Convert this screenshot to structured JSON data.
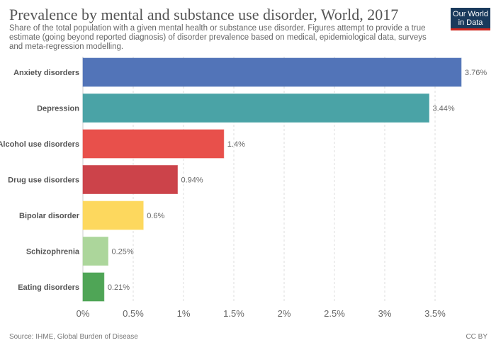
{
  "header": {
    "title": "Prevalence by mental and substance use disorder, World, 2017",
    "subtitle": "Share of the total population with a given mental health or substance use disorder. Figures attempt to provide a true estimate (going beyond reported diagnosis) of disorder prevalence based on medical, epidemiological data, surveys and meta-regression modelling.",
    "logo_line1": "Our World",
    "logo_line2": "in Data"
  },
  "footer": {
    "source": "Source: IHME, Global Burden of Disease",
    "license": "CC BY"
  },
  "chart_data": {
    "type": "bar",
    "orientation": "horizontal",
    "categories": [
      "Anxiety disorders",
      "Depression",
      "Alcohol use disorders",
      "Drug use disorders",
      "Bipolar disorder",
      "Schizophrenia",
      "Eating disorders"
    ],
    "values": [
      3.76,
      3.44,
      1.4,
      0.94,
      0.6,
      0.25,
      0.21
    ],
    "value_labels": [
      "3.76%",
      "3.44%",
      "1.4%",
      "0.94%",
      "0.6%",
      "0.25%",
      "0.21%"
    ],
    "colors": [
      "#5274b8",
      "#4aa3a6",
      "#e8504b",
      "#cc434a",
      "#fdd85e",
      "#acd69b",
      "#4fa556"
    ],
    "xticks": [
      0,
      0.5,
      1,
      1.5,
      2,
      2.5,
      3,
      3.5
    ],
    "xtick_labels": [
      "0%",
      "0.5%",
      "1%",
      "1.5%",
      "2%",
      "2.5%",
      "3%",
      "3.5%"
    ],
    "xlim": [
      0,
      3.76
    ],
    "grid": "vertical dashed",
    "legend": "none"
  }
}
